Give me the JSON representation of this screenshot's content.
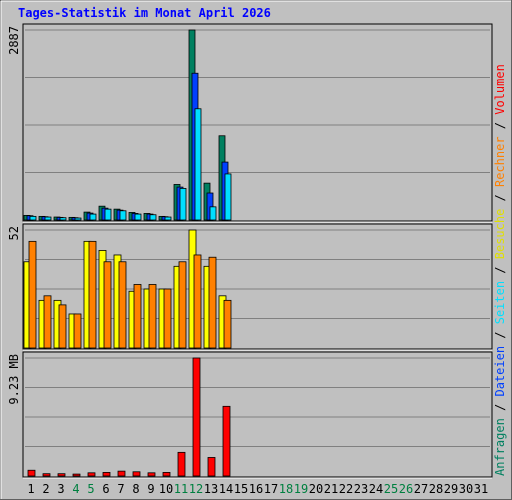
{
  "title": "Tages-Statistik im Monat April 2026",
  "colors": {
    "background": "#c0c0c0",
    "title": "#0000ff",
    "anfragen": "#008060",
    "dateien": "#0040ff",
    "seiten": "#00e0ff",
    "besuche": "#ffff00",
    "rechner": "#ff8000",
    "volumen": "#ff0000",
    "weekend_day": "#008040",
    "weekday": "#000000"
  },
  "legend": [
    {
      "label": "Anfragen",
      "color": "#008060"
    },
    {
      "label": "/",
      "color": "#000000"
    },
    {
      "label": "Dateien",
      "color": "#0040ff"
    },
    {
      "label": "/",
      "color": "#000000"
    },
    {
      "label": "Seiten",
      "color": "#00e0ff"
    },
    {
      "label": "/",
      "color": "#000000"
    },
    {
      "label": "Besuche",
      "color": "#e0e000"
    },
    {
      "label": "/",
      "color": "#000000"
    },
    {
      "label": "Rechner",
      "color": "#ff8000"
    },
    {
      "label": "/",
      "color": "#000000"
    },
    {
      "label": "Volumen",
      "color": "#ff0000"
    }
  ],
  "chart_data": {
    "type": "bar",
    "title": "Tages-Statistik im Monat April 2026",
    "days": [
      "1",
      "2",
      "3",
      "4",
      "5",
      "6",
      "7",
      "8",
      "9",
      "10",
      "11",
      "12",
      "13",
      "14",
      "15",
      "16",
      "17",
      "18",
      "19",
      "20",
      "21",
      "22",
      "23",
      "24",
      "25",
      "26",
      "27",
      "28",
      "29",
      "30",
      "31"
    ],
    "weekend_days": [
      "4",
      "5",
      "11",
      "12",
      "18",
      "19",
      "25",
      "26"
    ],
    "panels": [
      {
        "id": "hits",
        "max_label": "2887",
        "max": 2887,
        "series": [
          {
            "name": "Anfragen",
            "values": [
              70,
              55,
              45,
              40,
              120,
              210,
              165,
              115,
              100,
              55,
              540,
              2887,
              560,
              1280
            ]
          },
          {
            "name": "Dateien",
            "values": [
              65,
              50,
              40,
              35,
              105,
              180,
              150,
              100,
              90,
              50,
              500,
              2230,
              410,
              880
            ]
          },
          {
            "name": "Seiten",
            "values": [
              55,
              45,
              35,
              30,
              90,
              165,
              140,
              90,
              80,
              45,
              480,
              1690,
              200,
              700
            ]
          }
        ]
      },
      {
        "id": "visits",
        "max_label": "52",
        "max": 52,
        "series": [
          {
            "name": "Besuche",
            "values": [
              38,
              21,
              21,
              15,
              47,
              43,
              41,
              25,
              26,
              26,
              36,
              52,
              36,
              23
            ]
          },
          {
            "name": "Rechner",
            "values": [
              47,
              23,
              19,
              15,
              47,
              38,
              38,
              28,
              28,
              26,
              38,
              41,
              40,
              21
            ]
          }
        ]
      },
      {
        "id": "volume",
        "max_label": "9.23 MB",
        "max": 9.23,
        "series": [
          {
            "name": "Volumen",
            "values": [
              0.45,
              0.18,
              0.18,
              0.15,
              0.25,
              0.28,
              0.38,
              0.33,
              0.25,
              0.28,
              1.85,
              9.23,
              1.45,
              5.45
            ]
          }
        ]
      }
    ]
  }
}
